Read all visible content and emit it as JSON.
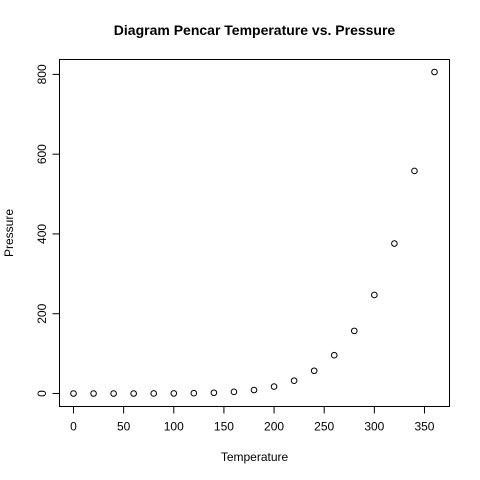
{
  "chart_data": {
    "type": "scatter",
    "title": "Diagram Pencar Temperature vs. Pressure",
    "xlabel": "Temperature",
    "ylabel": "Pressure",
    "xlim": [
      0,
      360
    ],
    "ylim": [
      0,
      806
    ],
    "x_ticks": [
      "0",
      "50",
      "100",
      "150",
      "200",
      "250",
      "300",
      "350"
    ],
    "y_ticks": [
      "0",
      "200",
      "400",
      "600",
      "800"
    ],
    "grid": false,
    "x": [
      0,
      20,
      40,
      60,
      80,
      100,
      120,
      140,
      160,
      180,
      200,
      220,
      240,
      260,
      280,
      300,
      320,
      340,
      360
    ],
    "y": [
      0.0002,
      0.0012,
      0.006,
      0.03,
      0.09,
      0.27,
      0.75,
      1.85,
      4.2,
      8.8,
      17.3,
      32.1,
      57,
      96,
      157,
      247,
      376,
      558,
      806
    ]
  }
}
